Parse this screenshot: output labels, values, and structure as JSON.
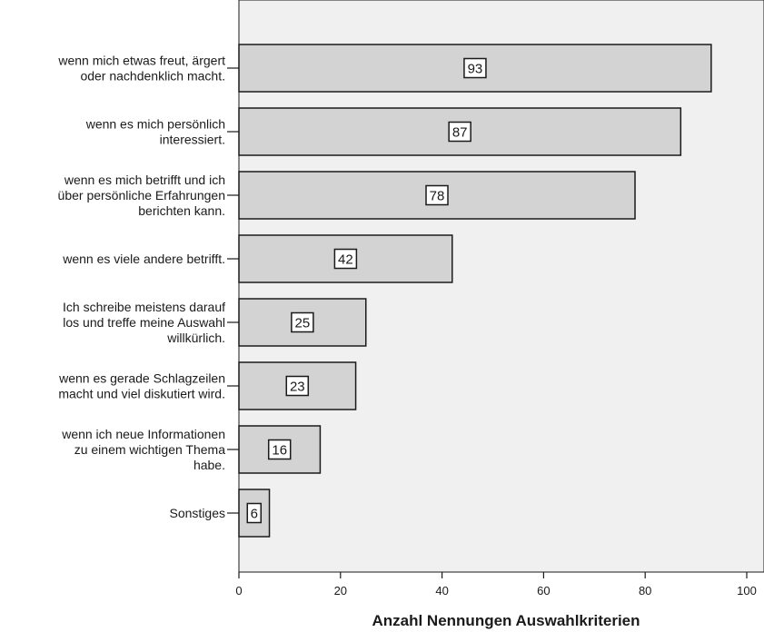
{
  "chart_data": {
    "type": "bar",
    "orientation": "horizontal",
    "categories": [
      [
        "wenn mich etwas freut, ärgert",
        "oder nachdenklich macht."
      ],
      [
        "wenn es mich persönlich",
        "interessiert."
      ],
      [
        "wenn es mich betrifft und ich",
        "über persönliche Erfahrungen",
        "berichten kann."
      ],
      [
        "wenn es viele andere betrifft."
      ],
      [
        "Ich schreibe meistens darauf",
        "los und treffe meine Auswahl",
        "willkürlich."
      ],
      [
        "wenn es gerade Schlagzeilen",
        "macht und viel diskutiert wird."
      ],
      [
        "wenn ich neue Informationen",
        "zu einem wichtigen Thema",
        "habe."
      ],
      [
        "Sonstiges"
      ]
    ],
    "values": [
      93,
      87,
      78,
      42,
      25,
      23,
      16,
      6
    ],
    "data_labels": [
      "93",
      "87",
      "78",
      "42",
      "25",
      "23",
      "16",
      "6"
    ],
    "xlabel": "Anzahl Nennungen Auswahlkriterien",
    "ylabel": "",
    "xlim": [
      0,
      100
    ],
    "xticks": [
      0,
      20,
      40,
      60,
      80,
      100
    ],
    "grid": false,
    "legend": "none",
    "colors": {
      "plot_background": "#f0f0f0",
      "bar_fill": "#d3d3d3",
      "bar_stroke": "#1a1a1a",
      "label_box_fill": "#ffffff"
    }
  }
}
